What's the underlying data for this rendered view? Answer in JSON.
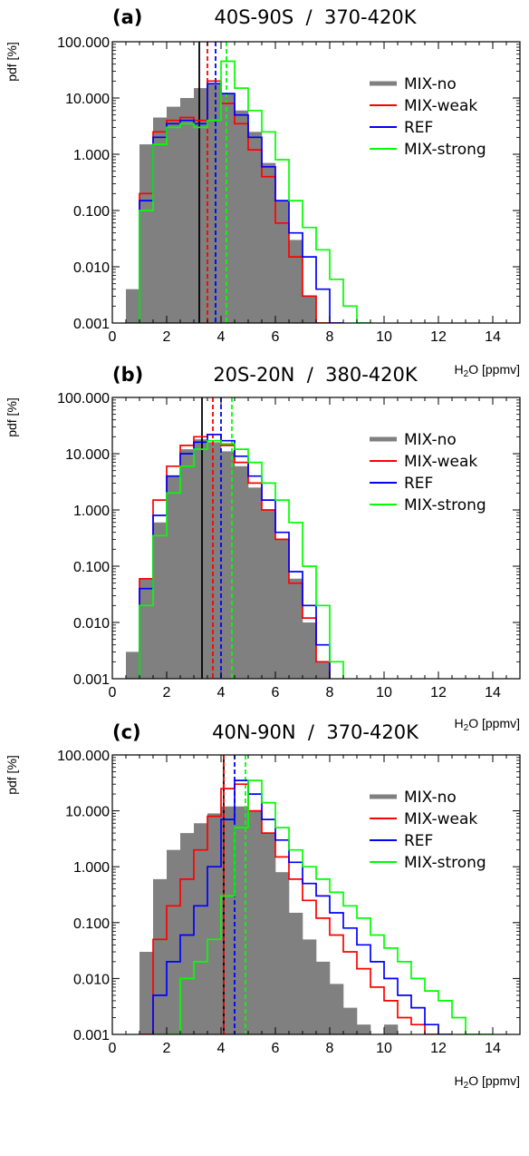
{
  "figure": {
    "series_styles": [
      {
        "name": "MIX-no",
        "color": "#808080",
        "style": "filled-bars"
      },
      {
        "name": "MIX-weak",
        "color": "#ff0000",
        "style": "step"
      },
      {
        "name": "REF",
        "color": "#0000ff",
        "style": "step"
      },
      {
        "name": "MIX-strong",
        "color": "#00ff00",
        "style": "step"
      }
    ],
    "mean_line_color": "#000000"
  },
  "chart_data": [
    {
      "type": "bar",
      "panel_label": "(a)",
      "title": "40S-90S  /  370-420K",
      "ylabel": "pdf [%]",
      "xlabel": "H2O [ppmv]",
      "xlim": [
        0,
        15
      ],
      "ylim": [
        0.001,
        100
      ],
      "ylog": true,
      "xticks": [
        "0",
        "2",
        "4",
        "6",
        "8",
        "10",
        "12",
        "14"
      ],
      "yticks": [
        "0.001",
        "0.010",
        "0.100",
        "1.000",
        "10.000",
        "100.000"
      ],
      "bin_width": 0.5,
      "bin_starts": [
        0.5,
        1.0,
        1.5,
        2.0,
        2.5,
        3.0,
        3.5,
        4.0,
        4.5,
        5.0,
        5.5,
        6.0,
        6.5,
        7.0,
        7.5,
        8.0,
        8.5,
        9.0
      ],
      "series": [
        {
          "name": "MIX-no",
          "values": [
            0.004,
            1.5,
            4.5,
            7,
            10,
            15,
            18,
            12,
            6,
            2.5,
            0.7,
            0.15,
            0.03,
            0.003,
            null,
            null,
            null,
            null
          ]
        },
        {
          "name": "MIX-weak",
          "values": [
            null,
            0.2,
            2.5,
            4,
            4.5,
            4,
            20,
            8,
            3.5,
            1.2,
            0.4,
            0.06,
            0.015,
            0.003,
            0.001,
            null,
            null,
            null
          ]
        },
        {
          "name": "REF",
          "values": [
            null,
            0.15,
            2,
            3.5,
            4,
            3.5,
            18,
            12,
            5,
            2,
            0.6,
            0.15,
            0.04,
            0.015,
            0.004,
            0.001,
            null,
            null
          ]
        },
        {
          "name": "MIX-strong",
          "values": [
            null,
            0.1,
            1.5,
            3,
            3.5,
            3,
            4,
            45,
            15,
            6,
            2.5,
            0.8,
            0.15,
            0.05,
            0.02,
            0.006,
            0.002,
            0.001
          ]
        }
      ],
      "mean_lines": [
        {
          "name": "MIX-no",
          "x": 3.2
        },
        {
          "name": "MIX-weak",
          "x": 3.5
        },
        {
          "name": "REF",
          "x": 3.8
        },
        {
          "name": "MIX-strong",
          "x": 4.2
        }
      ],
      "legend": [
        "MIX-no",
        "MIX-weak",
        "REF",
        "MIX-strong"
      ],
      "legend_position": "top-right"
    },
    {
      "type": "bar",
      "panel_label": "(b)",
      "title": "20S-20N  /  380-420K",
      "ylabel": "pdf [%]",
      "xlabel": "H2O [ppmv]",
      "xlim": [
        0,
        15
      ],
      "ylim": [
        0.001,
        100
      ],
      "ylog": true,
      "xticks": [
        "0",
        "2",
        "4",
        "6",
        "8",
        "10",
        "12",
        "14"
      ],
      "yticks": [
        "0.001",
        "0.010",
        "0.100",
        "1.000",
        "10.000",
        "100.000"
      ],
      "bin_width": 0.5,
      "bin_starts": [
        0.5,
        1.0,
        1.5,
        2.0,
        2.5,
        3.0,
        3.5,
        4.0,
        4.5,
        5.0,
        5.5,
        6.0,
        6.5,
        7.0,
        7.5,
        8.0
      ],
      "series": [
        {
          "name": "MIX-no",
          "values": [
            0.003,
            0.06,
            0.6,
            4,
            12,
            18,
            16,
            11,
            6,
            2.5,
            1,
            0.3,
            0.06,
            0.01,
            0.002,
            null
          ]
        },
        {
          "name": "MIX-weak",
          "values": [
            null,
            0.06,
            1.5,
            6,
            14,
            20,
            22,
            14,
            7,
            3,
            1,
            0.3,
            0.05,
            0.012,
            0.002,
            null
          ]
        },
        {
          "name": "REF",
          "values": [
            null,
            0.04,
            0.8,
            4,
            10,
            16,
            22,
            17,
            9,
            4,
            1.5,
            0.4,
            0.08,
            0.02,
            0.004,
            null
          ]
        },
        {
          "name": "MIX-strong",
          "values": [
            null,
            0.02,
            0.35,
            2,
            6,
            12,
            17,
            15,
            12,
            7,
            3,
            1.5,
            0.6,
            0.1,
            0.02,
            0.002
          ]
        }
      ],
      "mean_lines": [
        {
          "name": "MIX-no",
          "x": 3.3
        },
        {
          "name": "MIX-weak",
          "x": 3.7
        },
        {
          "name": "REF",
          "x": 4.0
        },
        {
          "name": "MIX-strong",
          "x": 4.4
        }
      ],
      "legend": [
        "MIX-no",
        "MIX-weak",
        "REF",
        "MIX-strong"
      ],
      "legend_position": "top-right"
    },
    {
      "type": "bar",
      "panel_label": "(c)",
      "title": "40N-90N  /  370-420K",
      "ylabel": "pdf [%]",
      "xlabel": "H2O [ppmv]",
      "xlim": [
        0,
        15
      ],
      "ylim": [
        0.001,
        100
      ],
      "ylog": true,
      "xticks": [
        "0",
        "2",
        "4",
        "6",
        "8",
        "10",
        "12",
        "14"
      ],
      "yticks": [
        "0.001",
        "0.010",
        "0.100",
        "1.000",
        "10.000",
        "100.000"
      ],
      "bin_width": 0.5,
      "bin_starts": [
        0.5,
        1.0,
        1.5,
        2.0,
        2.5,
        3.0,
        3.5,
        4.0,
        4.5,
        5.0,
        5.5,
        6.0,
        6.5,
        7.0,
        7.5,
        8.0,
        8.5,
        9.0,
        9.5,
        10.0,
        10.5,
        11.0,
        11.5,
        12.0,
        12.5,
        13.0,
        13.5
      ],
      "series": [
        {
          "name": "MIX-no",
          "values": [
            0.001,
            0.03,
            0.6,
            2,
            4,
            6,
            9,
            12,
            12,
            10,
            4,
            0.8,
            0.15,
            0.05,
            0.02,
            0.008,
            0.003,
            0.0015,
            null,
            0.0015,
            null,
            null,
            null,
            null,
            null,
            null,
            null
          ]
        },
        {
          "name": "MIX-weak",
          "values": [
            null,
            0.001,
            0.05,
            0.2,
            0.6,
            2,
            8,
            25,
            30,
            10,
            4,
            1.5,
            0.6,
            0.25,
            0.12,
            0.06,
            0.03,
            0.015,
            0.007,
            0.004,
            0.002,
            0.0015,
            0.001,
            null,
            null,
            null,
            null
          ]
        },
        {
          "name": "REF",
          "values": [
            null,
            null,
            0.005,
            0.02,
            0.06,
            0.2,
            1,
            7,
            35,
            20,
            7,
            3,
            1.2,
            0.5,
            0.3,
            0.15,
            0.08,
            0.04,
            0.02,
            0.01,
            0.005,
            0.003,
            0.0015,
            0.001,
            null,
            null,
            null
          ]
        },
        {
          "name": "MIX-strong",
          "values": [
            null,
            null,
            null,
            0.001,
            0.01,
            0.02,
            0.05,
            0.3,
            5,
            35,
            14,
            5,
            2,
            1,
            0.6,
            0.35,
            0.2,
            0.12,
            0.06,
            0.035,
            0.02,
            0.01,
            0.006,
            0.004,
            0.002,
            0.001,
            0.001
          ]
        }
      ],
      "mean_lines": [
        {
          "name": "MIX-no",
          "x": 4.1
        },
        {
          "name": "MIX-weak",
          "x": 4.1
        },
        {
          "name": "REF",
          "x": 4.5
        },
        {
          "name": "MIX-strong",
          "x": 4.9
        }
      ],
      "legend": [
        "MIX-no",
        "MIX-weak",
        "REF",
        "MIX-strong"
      ],
      "legend_position": "top-right"
    }
  ]
}
